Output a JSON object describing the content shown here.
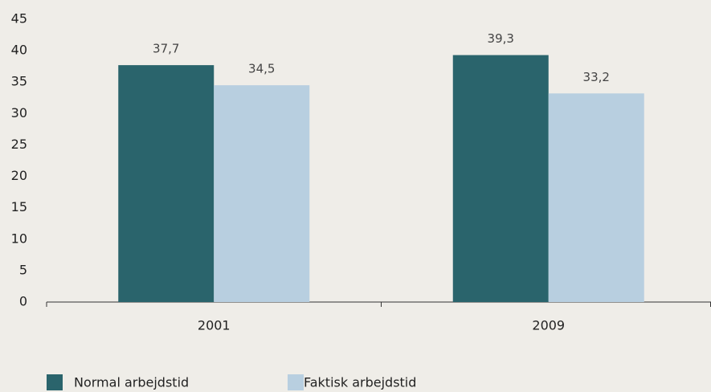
{
  "chart_data": {
    "type": "bar",
    "categories": [
      "2001",
      "2009"
    ],
    "series": [
      {
        "name": "Normal arbejdstid",
        "color": "#2a646c",
        "values": [
          37.7,
          39.3
        ],
        "value_labels": [
          "37,7",
          "39,3"
        ]
      },
      {
        "name": "Faktisk arbejdstid",
        "color": "#b8cfe0",
        "values": [
          34.5,
          33.2
        ],
        "value_labels": [
          "34,5",
          "33,2"
        ]
      }
    ],
    "ylim": [
      0,
      45
    ],
    "yticks": [
      0,
      5,
      10,
      15,
      20,
      25,
      30,
      35,
      40,
      45
    ],
    "grid": false,
    "legend": "bottom"
  }
}
